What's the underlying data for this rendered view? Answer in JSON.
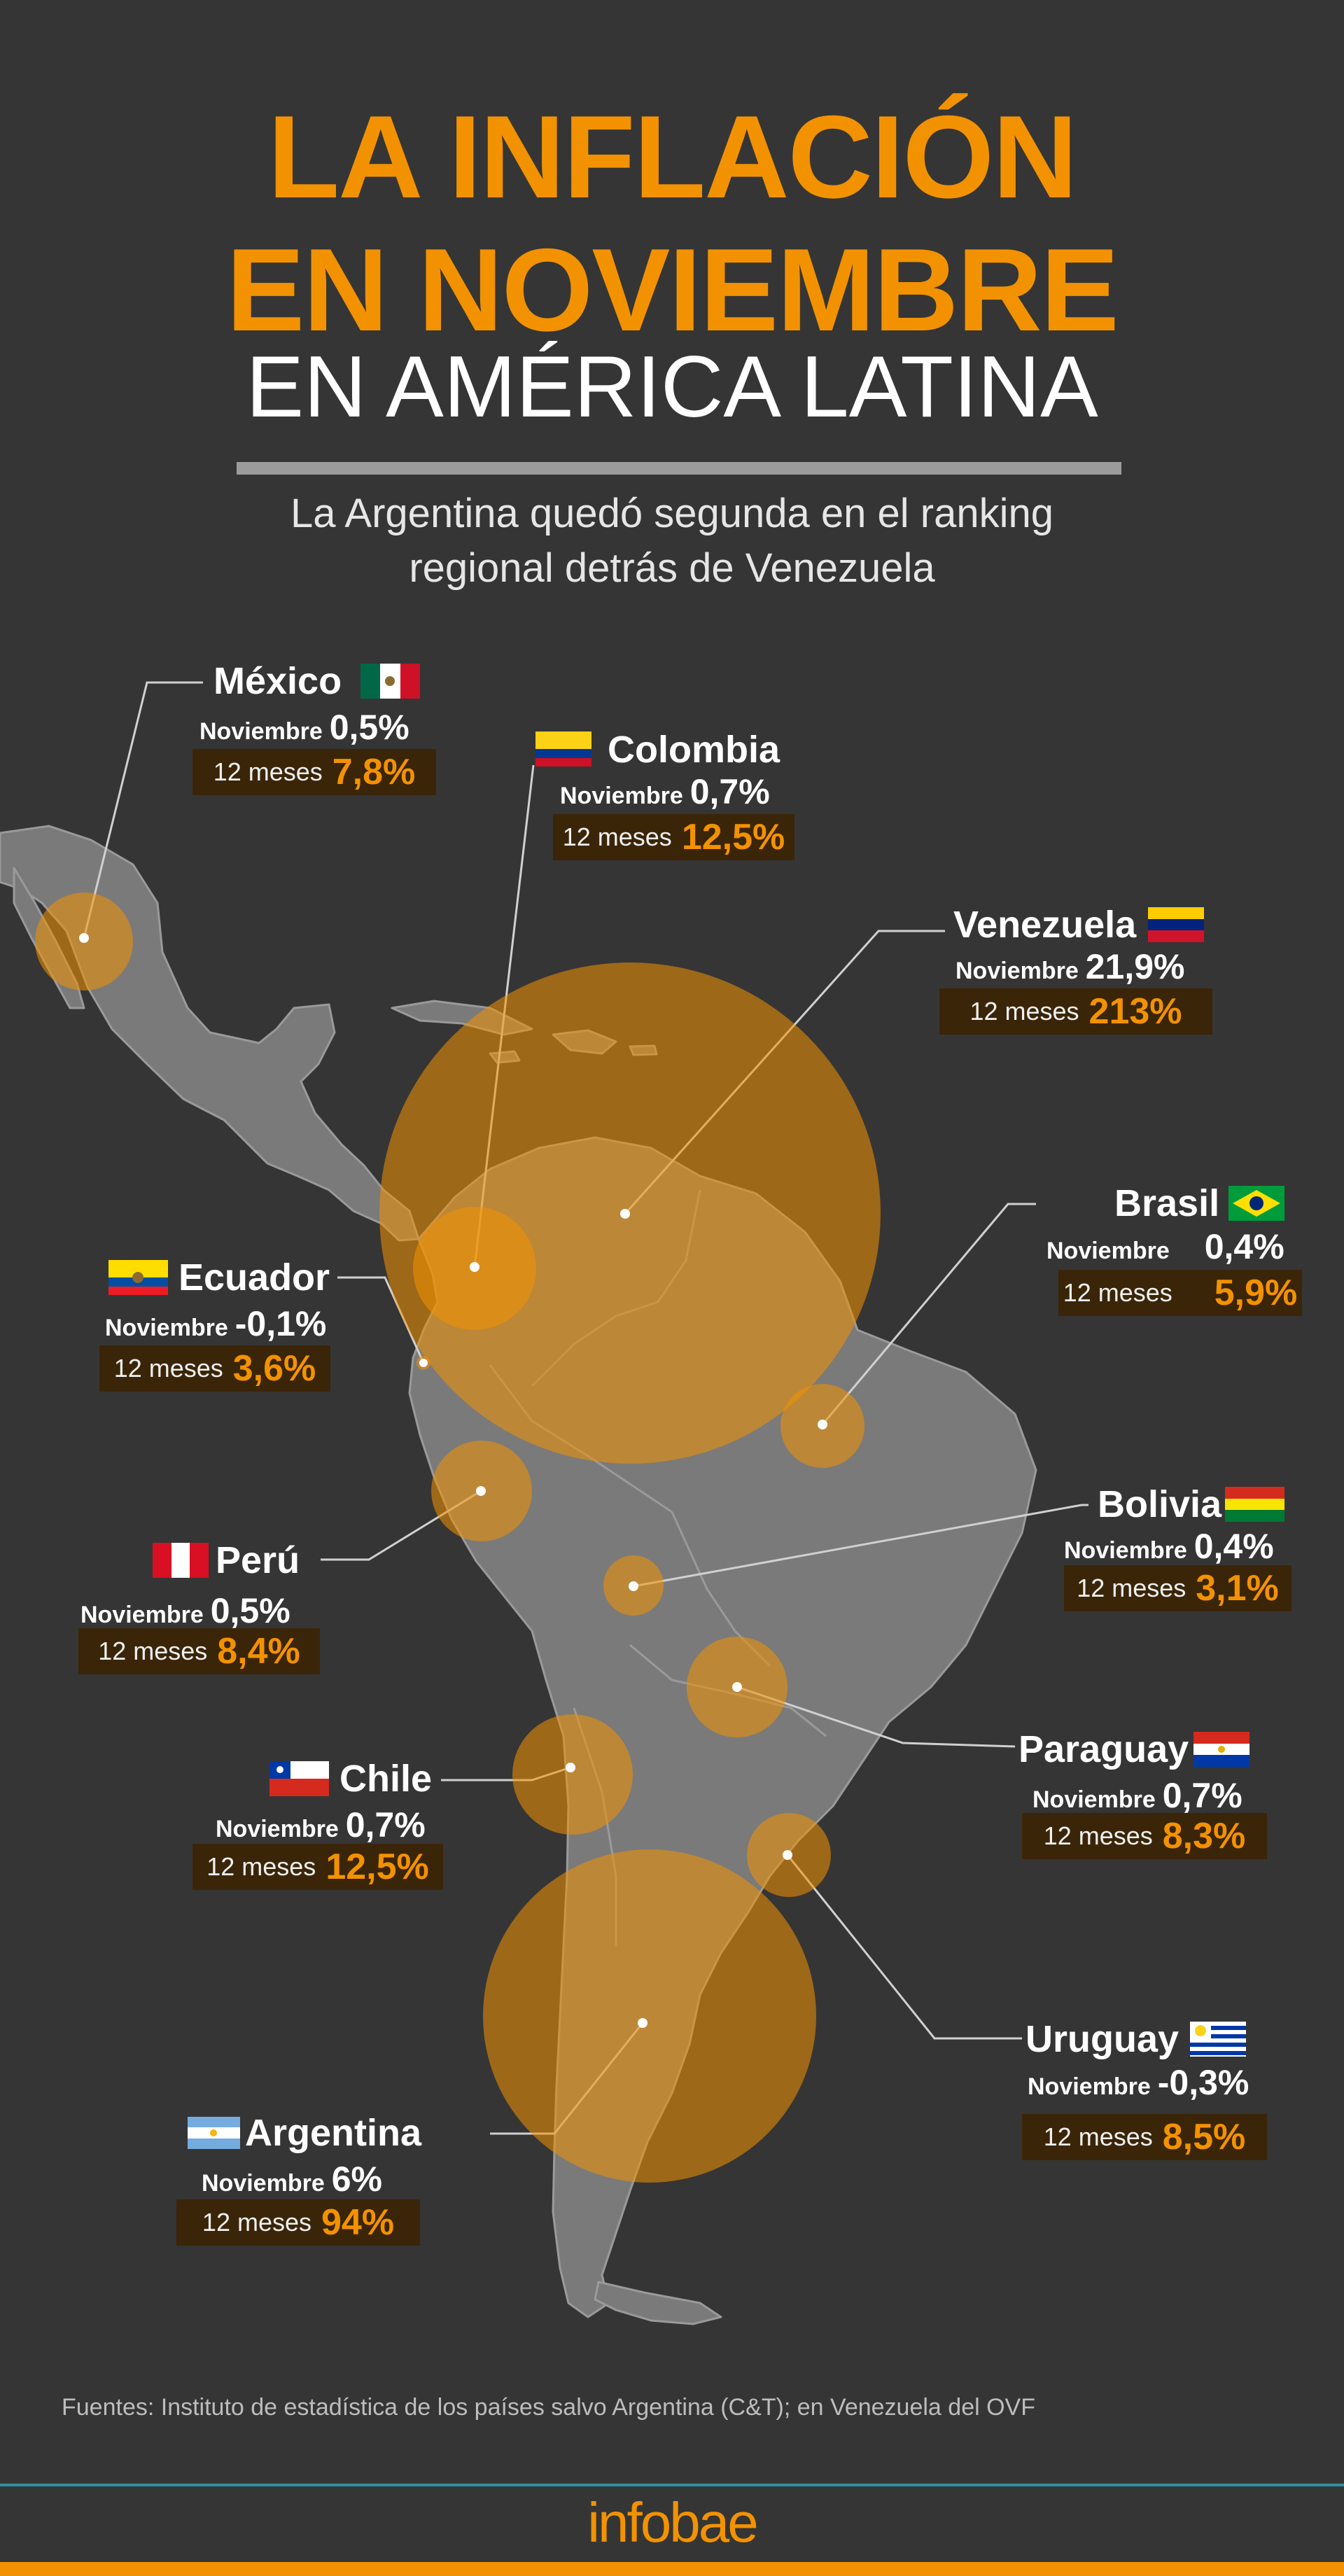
{
  "title": {
    "line1": "LA INFLACIÓN",
    "line2": "EN NOVIEMBRE",
    "line3": "EN AMÉRICA LATINA"
  },
  "subtitle": {
    "line1": "La Argentina quedó segunda en el ranking",
    "line2": "regional detrás de Venezuela"
  },
  "labels": {
    "monthly": "Noviembre",
    "yearly": "12 meses"
  },
  "colors": {
    "accent": "#F39200",
    "background": "#353535",
    "land": "#7a7a7a",
    "bubble": "#F39200"
  },
  "countries": [
    {
      "id": "mexico",
      "name": "México",
      "monthly": "0,5%",
      "yearly": "7,8%",
      "flag": "flag-mexico-icon"
    },
    {
      "id": "colombia",
      "name": "Colombia",
      "monthly": "0,7%",
      "yearly": "12,5%",
      "flag": "flag-colombia-icon"
    },
    {
      "id": "venezuela",
      "name": "Venezuela",
      "monthly": "21,9%",
      "yearly": "213%",
      "flag": "flag-venezuela-icon"
    },
    {
      "id": "brasil",
      "name": "Brasil",
      "monthly": "0,4%",
      "yearly": "5,9%",
      "flag": "flag-brazil-icon"
    },
    {
      "id": "ecuador",
      "name": "Ecuador",
      "monthly": "-0,1%",
      "yearly": "3,6%",
      "flag": "flag-ecuador-icon"
    },
    {
      "id": "bolivia",
      "name": "Bolivia",
      "monthly": "0,4%",
      "yearly": "3,1%",
      "flag": "flag-bolivia-icon"
    },
    {
      "id": "peru",
      "name": "Perú",
      "monthly": "0,5%",
      "yearly": "8,4%",
      "flag": "flag-peru-icon"
    },
    {
      "id": "paraguay",
      "name": "Paraguay",
      "monthly": "0,7%",
      "yearly": "8,3%",
      "flag": "flag-paraguay-icon"
    },
    {
      "id": "chile",
      "name": "Chile",
      "monthly": "0,7%",
      "yearly": "12,5%",
      "flag": "flag-chile-icon"
    },
    {
      "id": "uruguay",
      "name": "Uruguay",
      "monthly": "-0,3%",
      "yearly": "8,5%",
      "flag": "flag-uruguay-icon"
    },
    {
      "id": "argentina",
      "name": "Argentina",
      "monthly": "6%",
      "yearly": "94%",
      "flag": "flag-argentina-icon"
    }
  ],
  "sources": "Fuentes: Instituto de estadística de los países salvo Argentina (C&T); en Venezuela del OVF",
  "brand": "infobae"
}
